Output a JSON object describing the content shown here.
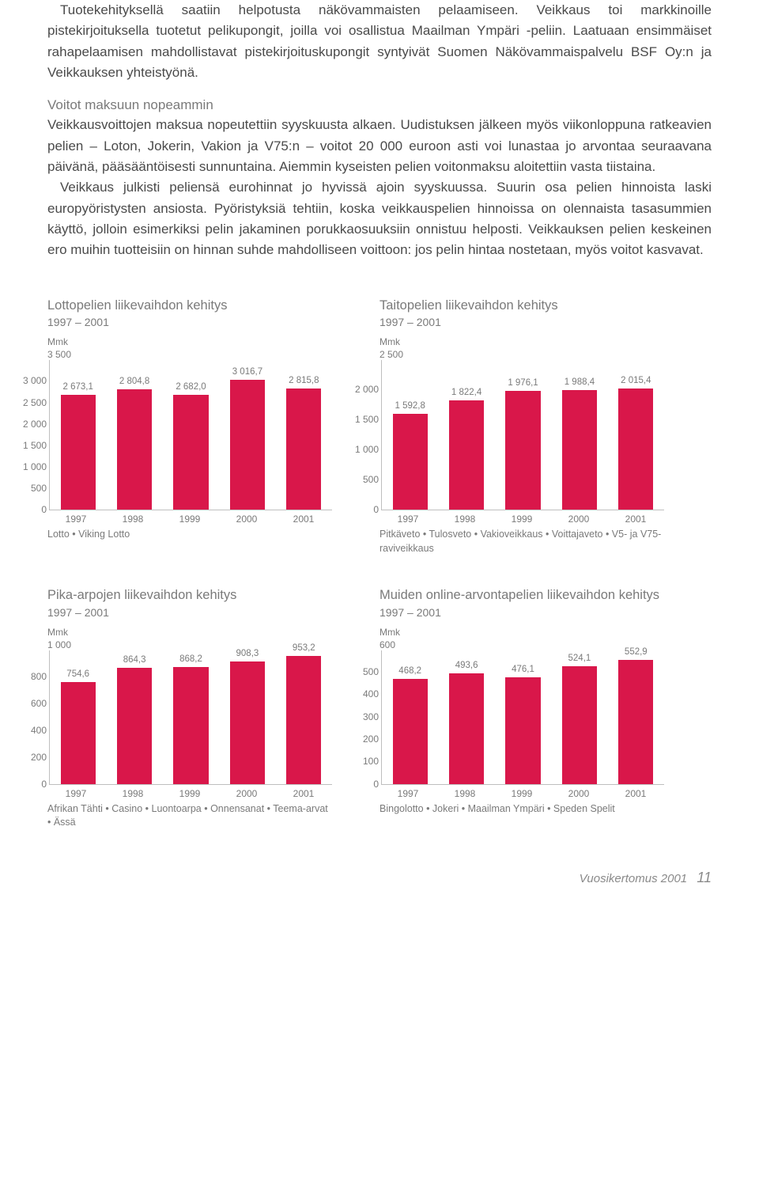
{
  "text": {
    "p1": "Tuotekehityksellä saatiin helpotusta näkövammaisten pelaamiseen. Veikkaus toi markkinoille pistekirjoituksella tuotetut pelikupongit, joilla voi osallistua Maailman Ympäri -peliin. Laatuaan ensimmäiset rahapelaamisen mahdollistavat pistekirjoituskupongit syntyivät Suomen Näkövammaispalvelu BSF Oy:n ja Veikkauksen yhteistyönä.",
    "subhead": "Voitot maksuun nopeammin",
    "p2a": "Veikkausvoittojen maksua nopeutettiin syyskuusta alkaen. Uudistuksen jälkeen myös viikonloppuna ratkeavien pelien – Loton, Jokerin, Vakion ja V75:n – voitot 20 000 euroon asti voi lunastaa jo arvontaa seuraavana päivänä, pääsääntöisesti sunnuntaina. Aiemmin kyseisten pelien voitonmaksu aloitettiin vasta tiistaina.",
    "p2b": "Veikkaus julkisti peliensä eurohinnat jo hyvissä ajoin syyskuussa. Suurin osa pelien hinnoista laski europyöristysten ansiosta. Pyöristyksiä tehtiin, koska veikkauspelien hinnoissa on olennaista tasasummien käyttö, jolloin esimerkiksi pelin jakaminen porukkaosuuksiin onnistuu helposti. Veikkauksen pelien keskeinen ero muihin tuotteisiin on hinnan suhde mahdolliseen voittoon: jos pelin hintaa nostetaan, myös voitot kasvavat."
  },
  "charts": {
    "lotto": {
      "title": "Lottopelien liikevaihdon kehitys",
      "subtitle": "1997 – 2001",
      "unit": "Mmk",
      "ymax_label": "3 500",
      "ymax": 3500,
      "yticks": [
        0,
        500,
        1000,
        1500,
        2000,
        2500,
        3000,
        3500
      ],
      "ytick_labels": [
        "0",
        "500",
        "1 000",
        "1 500",
        "2 000",
        "2 500",
        "3 000",
        "3 500"
      ],
      "height": 190,
      "years": [
        "1997",
        "1998",
        "1999",
        "2000",
        "2001"
      ],
      "values": [
        2673.1,
        2804.8,
        2682.0,
        3016.7,
        2815.8
      ],
      "value_labels": [
        "2 673,1",
        "2 804,8",
        "2 682,0",
        "3 016,7",
        "2 815,8"
      ],
      "note": "Lotto • Viking Lotto",
      "bar_color": "#d9174a"
    },
    "taito": {
      "title": "Taitopelien liikevaihdon kehitys",
      "subtitle": "1997 – 2001",
      "unit": "Mmk",
      "ymax_label": "2 500",
      "ymax": 2500,
      "yticks": [
        0,
        500,
        1000,
        1500,
        2000,
        2500
      ],
      "ytick_labels": [
        "0",
        "500",
        "1 000",
        "1 500",
        "2 000",
        "2 500"
      ],
      "height": 190,
      "years": [
        "1997",
        "1998",
        "1999",
        "2000",
        "2001"
      ],
      "values": [
        1592.8,
        1822.4,
        1976.1,
        1988.4,
        2015.4
      ],
      "value_labels": [
        "1 592,8",
        "1 822,4",
        "1 976,1",
        "1 988,4",
        "2 015,4"
      ],
      "note": "Pitkäveto • Tulosveto • Vakioveikkaus • Voittajaveto • V5- ja V75-raviveikkaus",
      "bar_color": "#d9174a"
    },
    "pika": {
      "title": "Pika-arpojen liikevaihdon kehitys",
      "subtitle": "1997 – 2001",
      "unit": "Mmk",
      "ymax_label": "1 000",
      "ymax": 1000,
      "yticks": [
        0,
        200,
        400,
        600,
        800,
        1000
      ],
      "ytick_labels": [
        "0",
        "200",
        "400",
        "600",
        "800",
        "1 000"
      ],
      "height": 170,
      "years": [
        "1997",
        "1998",
        "1999",
        "2000",
        "2001"
      ],
      "values": [
        754.6,
        864.3,
        868.2,
        908.3,
        953.2
      ],
      "value_labels": [
        "754,6",
        "864,3",
        "868,2",
        "908,3",
        "953,2"
      ],
      "note": "Afrikan Tähti • Casino • Luontoarpa • Onnensanat • Teema-arvat • Ässä",
      "bar_color": "#d9174a"
    },
    "muut": {
      "title": "Muiden online-arvontapelien liikevaihdon kehitys",
      "subtitle": "1997 – 2001",
      "title2_has_sub_inline": true,
      "unit": "Mmk",
      "ymax_label": "600",
      "ymax": 600,
      "yticks": [
        0,
        100,
        200,
        300,
        400,
        500,
        600
      ],
      "ytick_labels": [
        "0",
        "100",
        "200",
        "300",
        "400",
        "500",
        "600"
      ],
      "height": 170,
      "years": [
        "1997",
        "1998",
        "1999",
        "2000",
        "2001"
      ],
      "values": [
        468.2,
        493.6,
        476.1,
        524.1,
        552.9
      ],
      "value_labels": [
        "468,2",
        "493,6",
        "476,1",
        "524,1",
        "552,9"
      ],
      "note": "Bingolotto • Jokeri • Maailman Ympäri • Speden Spelit",
      "bar_color": "#d9174a"
    }
  },
  "footer": {
    "label": "Vuosikertomus 2001",
    "page": "11"
  }
}
